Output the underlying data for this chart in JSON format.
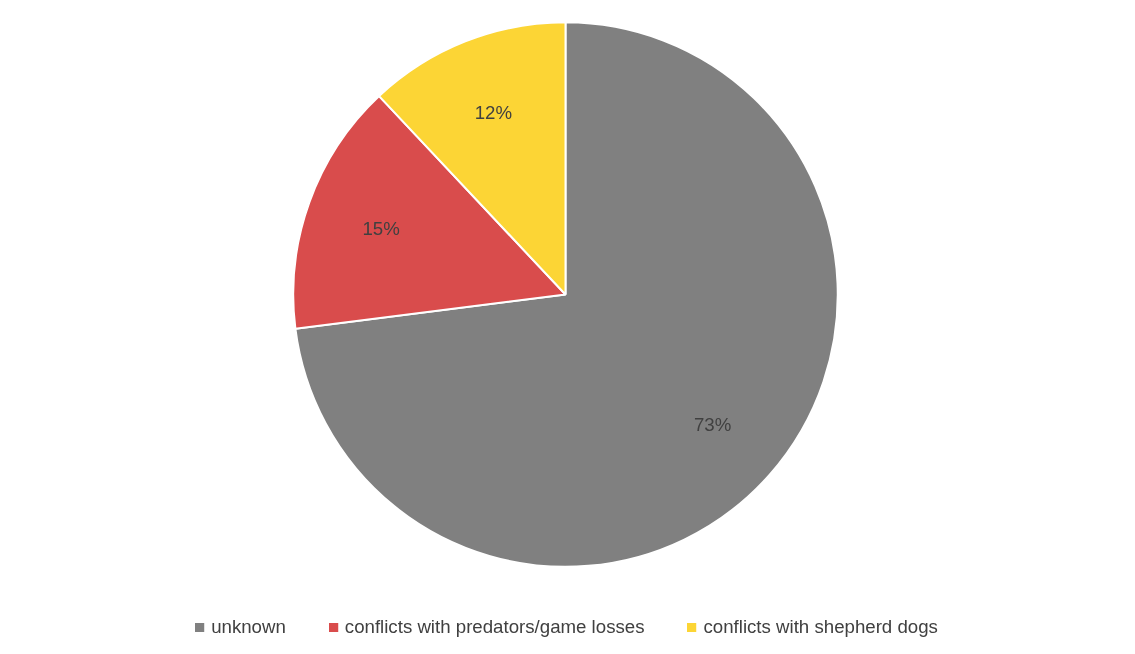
{
  "chart_data": {
    "type": "pie",
    "categories": [
      "unknown",
      "conflicts with predators/game losses",
      "conflicts with shepherd dogs"
    ],
    "values": [
      73,
      15,
      12
    ],
    "colors": [
      "#808080",
      "#d94c4c",
      "#fcd535"
    ],
    "value_labels": [
      "73%",
      "15%",
      "12%"
    ],
    "legend": "bottom"
  }
}
